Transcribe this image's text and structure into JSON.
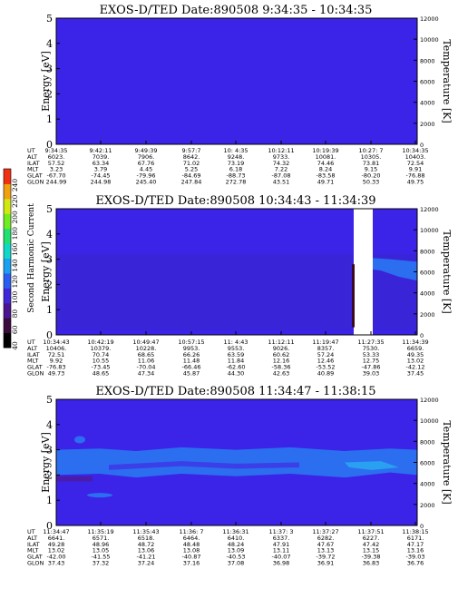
{
  "colors": {
    "background": "#3b23e8",
    "light_band": "#2c6ef0",
    "dark_band": "#4b1ca8",
    "white": "#ffffff",
    "dark_spike": "#3a0a25"
  },
  "colorbar": {
    "label": "Second Harmonic Current",
    "ticks": [
      "40",
      "60",
      "80",
      "100",
      "120",
      "140",
      "160",
      "180",
      "200",
      "220",
      "240"
    ],
    "colors": [
      "#000000",
      "#3b0a3e",
      "#4a1590",
      "#4028d8",
      "#2a5ef0",
      "#1aa0f0",
      "#10d8c8",
      "#20e070",
      "#70ec20",
      "#d0e810",
      "#f0a010",
      "#f03010"
    ]
  },
  "chart_data": [
    {
      "type": "heatmap",
      "title": "EXOS-D/TED",
      "date_label": "Date:890508",
      "time_range": "9:34:35 - 10:34:35",
      "ylabel": "Energy [eV]",
      "y2label": "Temperature [K]",
      "ylim": [
        0,
        5
      ],
      "y2lim": [
        0,
        12000
      ],
      "yticks": [
        "0",
        "1",
        "2",
        "3",
        "4",
        "5"
      ],
      "y2ticks": [
        "0",
        "2000",
        "4000",
        "6000",
        "8000",
        "10000",
        "12000"
      ],
      "rows": [
        {
          "label": "UT",
          "values": [
            "9:34:35",
            "9:42:11",
            "9:49:39",
            "9:57:7",
            "10: 4:35",
            "10:12:11",
            "10:19:39",
            "10:27: 7",
            "10:34:35"
          ]
        },
        {
          "label": "ALT",
          "values": [
            "6023.",
            "7039.",
            "7906.",
            "8642.",
            "9248.",
            "9733.",
            "10081.",
            "10305.",
            "10403."
          ]
        },
        {
          "label": "ILAT",
          "values": [
            "57.52",
            "63.34",
            "67.76",
            "71.02",
            "73.19",
            "74.32",
            "74.46",
            "73.81",
            "72.54"
          ]
        },
        {
          "label": "MLT",
          "values": [
            "3.23",
            "3.79",
            "4.45",
            "5.25",
            "6.18",
            "7.22",
            "8.24",
            "9.15",
            "9.91"
          ]
        },
        {
          "label": "GLAT",
          "values": [
            "-67.70",
            "-74.45",
            "-79.96",
            "-84.69",
            "-88.73",
            "-87.08",
            "-83.58",
            "-80.20",
            "-76.88"
          ]
        },
        {
          "label": "GLON",
          "values": [
            "244.99",
            "244.98",
            "245.40",
            "247.84",
            "272.78",
            "43.51",
            "49.71",
            "50.33",
            "49.75"
          ]
        }
      ]
    },
    {
      "type": "heatmap",
      "title": "EXOS-D/TED",
      "date_label": "Date:890508",
      "time_range": "10:34:43 - 11:34:39",
      "ylabel": "Energy [eV]",
      "y2label": "Temperature [K]",
      "ylim": [
        0,
        5
      ],
      "y2lim": [
        0,
        12000
      ],
      "yticks": [
        "0",
        "1",
        "2",
        "3",
        "4",
        "5"
      ],
      "y2ticks": [
        "0",
        "2000",
        "4000",
        "6000",
        "8000",
        "10000",
        "12000"
      ],
      "rows": [
        {
          "label": "UT",
          "values": [
            "10:34:43",
            "10:42:19",
            "10:49:47",
            "10:57:15",
            "11: 4:43",
            "11:12:11",
            "11:19:47",
            "11:27:35",
            "11:34:39"
          ]
        },
        {
          "label": "ALT",
          "values": [
            "10406.",
            "10379.",
            "10228.",
            "9953.",
            "9553.",
            "9026.",
            "8357.",
            "7530.",
            "6659."
          ]
        },
        {
          "label": "ILAT",
          "values": [
            "72.51",
            "70.74",
            "68.65",
            "66.26",
            "63.59",
            "60.62",
            "57.24",
            "53.33",
            "49.35"
          ]
        },
        {
          "label": "MLT",
          "values": [
            "9.92",
            "10.55",
            "11.06",
            "11.48",
            "11.84",
            "12.16",
            "12.46",
            "12.75",
            "13.02"
          ]
        },
        {
          "label": "GLAT",
          "values": [
            "-76.83",
            "-73.45",
            "-70.04",
            "-66.46",
            "-62.60",
            "-58.36",
            "-53.52",
            "-47.86",
            "-42.12"
          ]
        },
        {
          "label": "GLON",
          "values": [
            "49.73",
            "48.65",
            "47.34",
            "45.87",
            "44.30",
            "42.63",
            "40.89",
            "39.03",
            "37.45"
          ]
        }
      ]
    },
    {
      "type": "heatmap",
      "title": "EXOS-D/TED",
      "date_label": "Date:890508",
      "time_range": "11:34:47 - 11:38:15",
      "ylabel": "Energy [eV]",
      "y2label": "Temperature [K]",
      "ylim": [
        0,
        5
      ],
      "y2lim": [
        0,
        12000
      ],
      "yticks": [
        "0",
        "1",
        "2",
        "3",
        "4",
        "5"
      ],
      "y2ticks": [
        "0",
        "2000",
        "4000",
        "6000",
        "8000",
        "10000",
        "12000"
      ],
      "rows": [
        {
          "label": "UT",
          "values": [
            "11:34:47",
            "11:35:19",
            "11:35:43",
            "11:36: 7",
            "11:36:31",
            "11:37: 3",
            "11:37:27",
            "11:37:51",
            "11:38:15"
          ]
        },
        {
          "label": "ALT",
          "values": [
            "6641.",
            "6571.",
            "6518.",
            "6464.",
            "6410.",
            "6337.",
            "6282.",
            "6227.",
            "6171."
          ]
        },
        {
          "label": "ILAT",
          "values": [
            "49.28",
            "48.96",
            "48.72",
            "48.48",
            "48.24",
            "47.91",
            "47.67",
            "47.42",
            "47.17"
          ]
        },
        {
          "label": "MLT",
          "values": [
            "13.02",
            "13.05",
            "13.06",
            "13.08",
            "13.09",
            "13.11",
            "13.13",
            "13.15",
            "13.16"
          ]
        },
        {
          "label": "GLAT",
          "values": [
            "-42.00",
            "-41.55",
            "-41.21",
            "-40.87",
            "-40.53",
            "-40.07",
            "-39.72",
            "-39.38",
            "-39.03"
          ]
        },
        {
          "label": "GLON",
          "values": [
            "37.43",
            "37.32",
            "37.24",
            "37.16",
            "37.08",
            "36.98",
            "36.91",
            "36.83",
            "36.76"
          ]
        }
      ]
    }
  ]
}
